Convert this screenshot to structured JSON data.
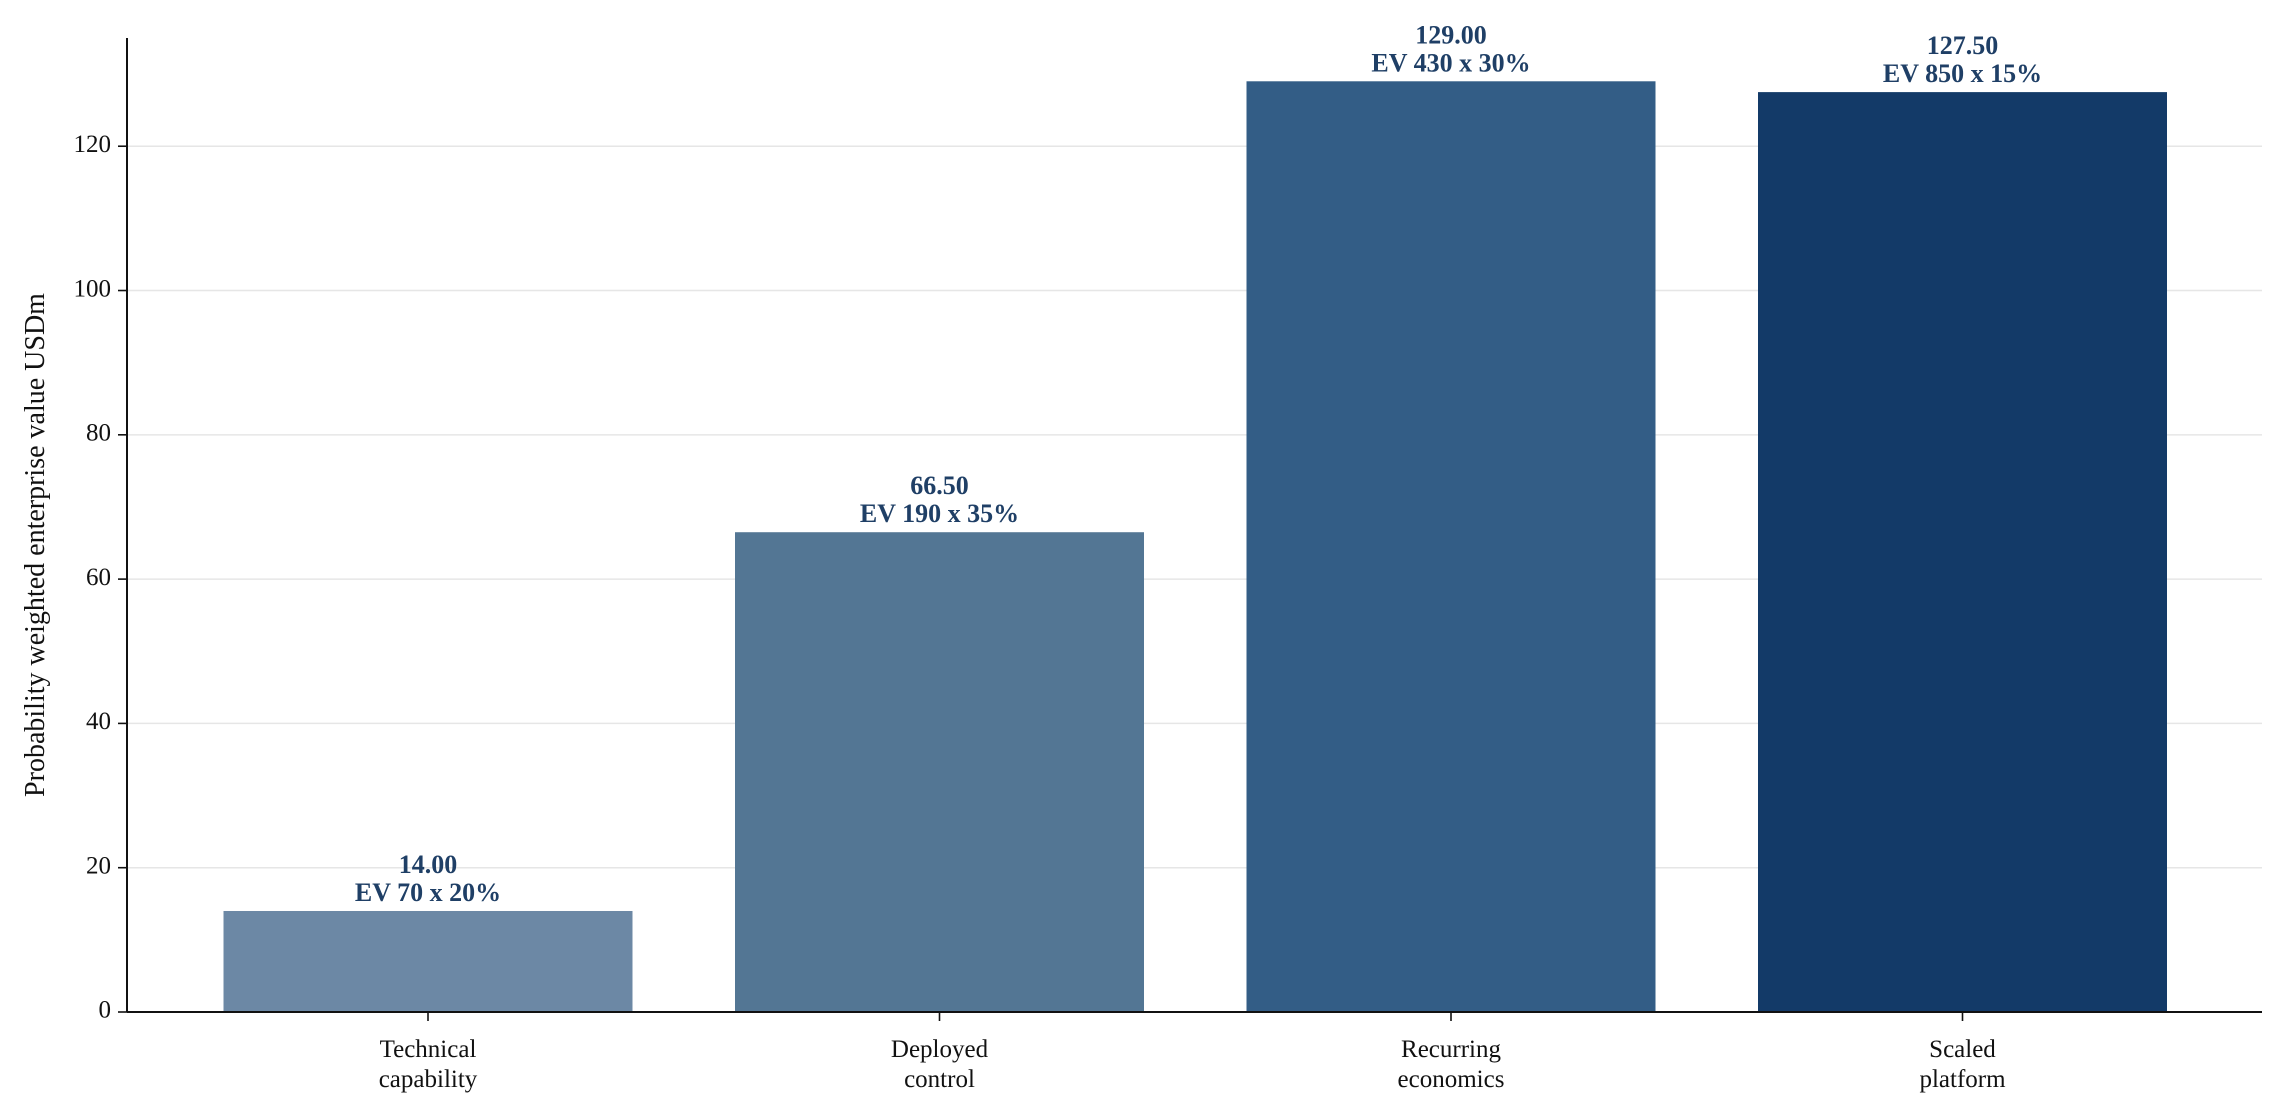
{
  "chart_data": {
    "type": "bar",
    "categories": [
      [
        "Technical",
        "capability"
      ],
      [
        "Deployed",
        "control"
      ],
      [
        "Recurring",
        "economics"
      ],
      [
        "Scaled",
        "platform"
      ]
    ],
    "values": [
      14.0,
      66.5,
      129.0,
      127.5
    ],
    "value_labels": [
      "14.00",
      "66.50",
      "129.00",
      "127.50"
    ],
    "annotations": [
      "EV 70 x 20%",
      "EV 190 x 35%",
      "EV 430 x 30%",
      "EV 850 x 15%"
    ],
    "bar_colors": [
      "#6c88a5",
      "#537694",
      "#335d86",
      "#133a68"
    ],
    "label_color": "#1f3f66",
    "title": "",
    "xlabel": "",
    "ylabel": "Probability weighted enterprise value USDm",
    "ylim": [
      0,
      135
    ],
    "yticks": [
      0,
      20,
      40,
      60,
      80,
      100,
      120
    ],
    "grid": "horizontal",
    "legend": "none"
  }
}
